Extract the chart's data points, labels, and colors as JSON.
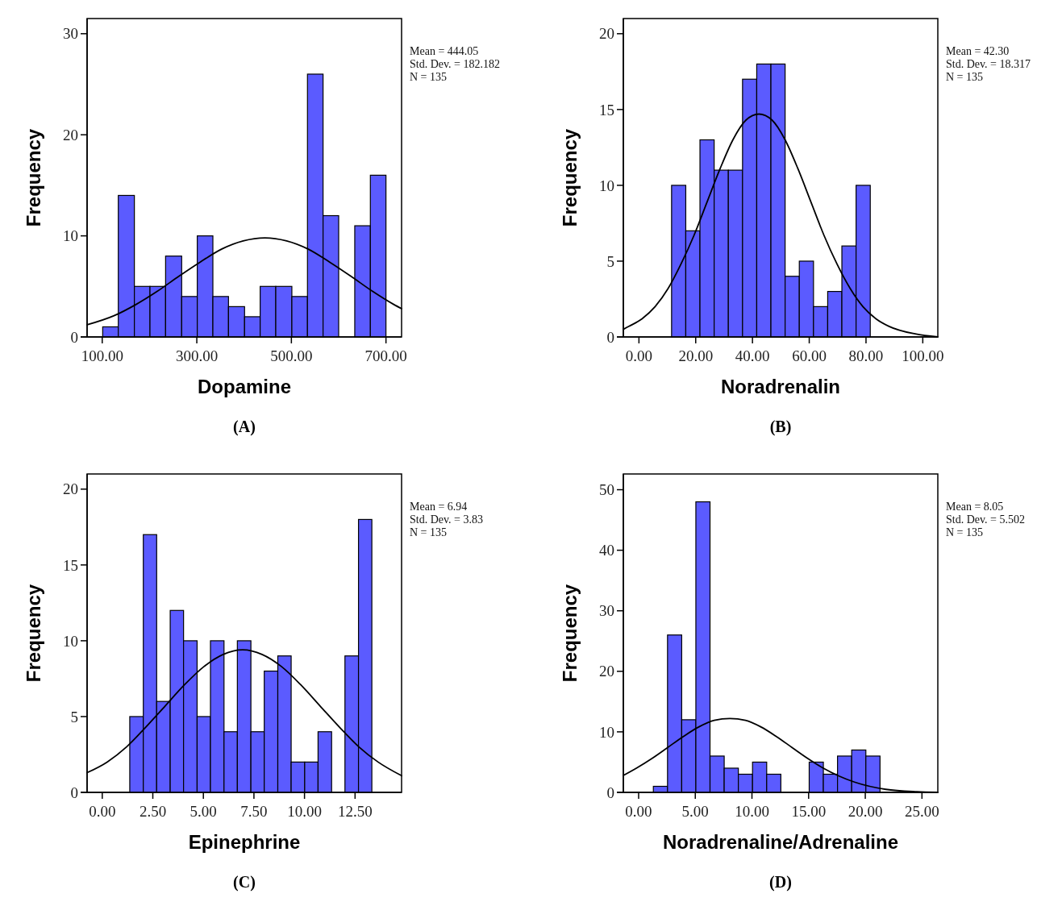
{
  "chart_data": [
    {
      "type": "histogram",
      "title": "(A)",
      "xlabel": "Dopamine",
      "ylabel": "Frequency",
      "color": "#5b5bff",
      "bins": [
        101,
        134,
        168,
        201,
        234,
        268,
        301,
        334,
        367,
        401,
        434,
        467,
        501,
        534,
        567,
        600,
        634,
        667,
        700
      ],
      "values": [
        1,
        14,
        5,
        5,
        8,
        4,
        10,
        4,
        3,
        2,
        5,
        5,
        4,
        26,
        12,
        0,
        11,
        16
      ],
      "xlim": [
        68,
        733
      ],
      "xticks": [
        {
          "value": 100,
          "label": "100.00"
        },
        {
          "value": 300,
          "label": "300.00"
        },
        {
          "value": 500,
          "label": "500.00"
        },
        {
          "value": 700,
          "label": "700.00"
        }
      ],
      "ylim": [
        0,
        31.5
      ],
      "yticks": [
        0,
        10,
        20,
        30
      ],
      "grid": false,
      "series": [
        {
          "type": "line",
          "color": "#000000",
          "x": [
            68,
            125,
            171,
            216,
            262,
            307,
            353,
            398,
            444,
            490,
            535,
            581,
            626,
            672,
            717,
            733
          ],
          "values": [
            1.2,
            2.1,
            3.2,
            4.5,
            6.0,
            7.4,
            8.7,
            9.5,
            9.8,
            9.5,
            8.7,
            7.4,
            6.0,
            4.5,
            3.2,
            2.8
          ]
        }
      ],
      "annotations": [
        "Mean = 444.05",
        "Std. Dev. = 182.182",
        "N = 135"
      ]
    },
    {
      "type": "histogram",
      "title": "(B)",
      "xlabel": "Noradrenalin",
      "ylabel": "Frequency",
      "color": "#5b5bff",
      "bins": [
        11.5,
        16.5,
        21.5,
        26.5,
        31.5,
        36.5,
        41.5,
        46.5,
        51.5,
        56.5,
        61.5,
        66.5,
        71.5,
        76.5,
        81.5
      ],
      "values": [
        10,
        7,
        13,
        11,
        11,
        17,
        18,
        18,
        4,
        5,
        2,
        3,
        6,
        10
      ],
      "xlim": [
        -5.5,
        105.3
      ],
      "xticks": [
        {
          "value": 0,
          "label": "0.00"
        },
        {
          "value": 20,
          "label": "20.00"
        },
        {
          "value": 40,
          "label": "40.00"
        },
        {
          "value": 60,
          "label": "60.00"
        },
        {
          "value": 80,
          "label": "80.00"
        },
        {
          "value": 100,
          "label": "100.00"
        }
      ],
      "ylim": [
        0,
        21
      ],
      "yticks": [
        0,
        5,
        10,
        15,
        20
      ],
      "grid": false,
      "series": [
        {
          "type": "line",
          "color": "#000000",
          "x": [
            -5.5,
            -3.5,
            1.1,
            5.7,
            10.3,
            14.8,
            19.4,
            24.0,
            28.6,
            33.1,
            37.7,
            42.3,
            46.9,
            51.5,
            56.0,
            60.6,
            65.2,
            69.8,
            74.4,
            78.9,
            83.5,
            88.1,
            97.3,
            105.3
          ],
          "values": [
            0.5,
            0.7,
            1.2,
            2.0,
            3.2,
            4.8,
            6.7,
            8.9,
            11.1,
            13.0,
            14.3,
            14.7,
            14.3,
            13.0,
            11.1,
            8.9,
            6.7,
            4.8,
            3.2,
            2.0,
            1.2,
            0.7,
            0.2,
            0.0
          ]
        }
      ],
      "annotations": [
        "Mean = 42.30",
        "Std. Dev. = 18.317",
        "N = 135"
      ]
    },
    {
      "type": "histogram",
      "title": "(C)",
      "xlabel": "Epinephrine",
      "ylabel": "Frequency",
      "color": "#5b5bff",
      "bins": [
        1.36,
        2.03,
        2.69,
        3.36,
        4.02,
        4.69,
        5.35,
        6.02,
        6.68,
        7.35,
        8.01,
        8.68,
        9.34,
        10.01,
        10.67,
        11.34,
        12.0,
        12.67,
        13.33
      ],
      "values": [
        5,
        17,
        6,
        12,
        10,
        5,
        10,
        4,
        10,
        4,
        8,
        9,
        2,
        2,
        4,
        0,
        9,
        18
      ],
      "xlim": [
        -0.75,
        14.8
      ],
      "xticks": [
        {
          "value": 0,
          "label": "0.00"
        },
        {
          "value": 2.5,
          "label": "2.50"
        },
        {
          "value": 5,
          "label": "5.00"
        },
        {
          "value": 7.5,
          "label": "7.50"
        },
        {
          "value": 10,
          "label": "10.00"
        },
        {
          "value": 12.5,
          "label": "12.50"
        }
      ],
      "ylim": [
        0,
        21
      ],
      "yticks": [
        0,
        5,
        10,
        15,
        20
      ],
      "grid": false,
      "series": [
        {
          "type": "line",
          "color": "#000000",
          "x": [
            -0.75,
            0.24,
            1.2,
            2.15,
            3.11,
            4.07,
            5.03,
            5.98,
            6.94,
            7.9,
            8.86,
            9.81,
            10.77,
            11.73,
            12.69,
            13.64,
            14.8
          ],
          "values": [
            1.3,
            2.0,
            3.0,
            4.3,
            5.7,
            7.1,
            8.3,
            9.1,
            9.4,
            9.1,
            8.3,
            7.1,
            5.7,
            4.3,
            3.0,
            2.0,
            1.1
          ]
        }
      ],
      "annotations": [
        "Mean = 6.94",
        "Std. Dev. = 3.83",
        "N = 135"
      ]
    },
    {
      "type": "histogram",
      "title": "(D)",
      "xlabel": "Noradrenaline/Adrenaline",
      "ylabel": "Frequency",
      "color": "#5b5bff",
      "bins": [
        1.3,
        2.55,
        3.8,
        5.05,
        6.3,
        7.55,
        8.8,
        10.05,
        11.3,
        12.55,
        13.8,
        15.05,
        16.3,
        17.55,
        18.8,
        20.05,
        21.3
      ],
      "values": [
        1,
        26,
        12,
        48,
        6,
        4,
        3,
        5,
        3,
        0,
        0,
        5,
        3,
        6,
        7,
        6
      ],
      "xlim": [
        -1.35,
        26.4
      ],
      "xticks": [
        {
          "value": 0,
          "label": "0.00"
        },
        {
          "value": 5,
          "label": "5.00"
        },
        {
          "value": 10,
          "label": "10.00"
        },
        {
          "value": 15,
          "label": "15.00"
        },
        {
          "value": 20,
          "label": "20.00"
        },
        {
          "value": 25,
          "label": "25.00"
        }
      ],
      "ylim": [
        0,
        52.6
      ],
      "yticks": [
        0,
        10,
        20,
        30,
        40,
        50
      ],
      "grid": false,
      "series": [
        {
          "type": "line",
          "color": "#000000",
          "x": [
            -1.35,
            -0.2,
            1.17,
            2.55,
            3.92,
            5.3,
            6.67,
            8.05,
            9.43,
            10.8,
            12.18,
            13.55,
            14.93,
            16.3,
            17.68,
            19.05,
            21.81,
            24.56,
            26.4
          ],
          "values": [
            2.8,
            4.0,
            5.6,
            7.4,
            9.2,
            10.8,
            11.9,
            12.2,
            11.9,
            10.8,
            9.2,
            7.4,
            5.6,
            4.0,
            2.7,
            1.7,
            0.5,
            0.1,
            0.0
          ]
        }
      ],
      "annotations": [
        "Mean = 8.05",
        "Std. Dev. = 5.502",
        "N = 135"
      ]
    }
  ]
}
